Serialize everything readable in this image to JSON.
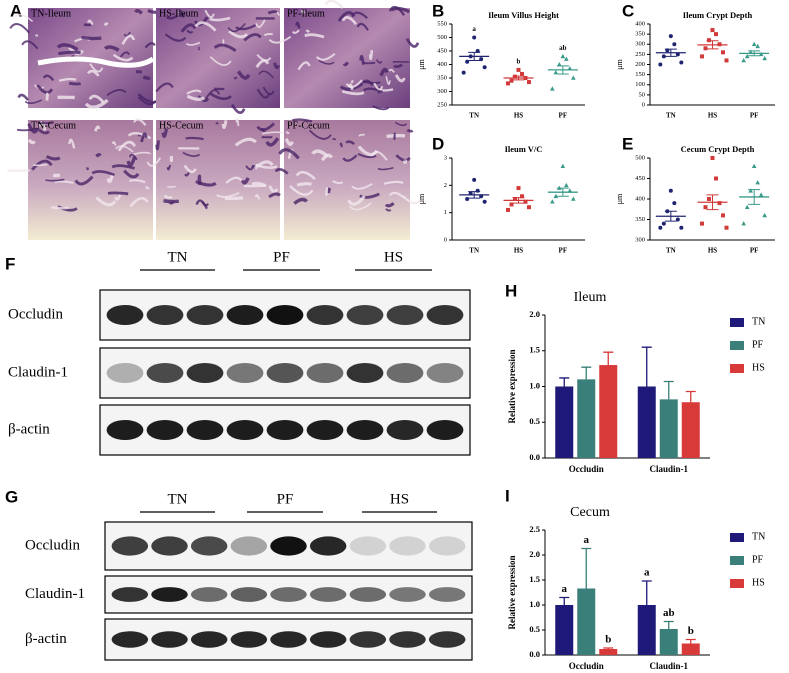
{
  "panels": [
    "A",
    "B",
    "C",
    "D",
    "E",
    "F",
    "G",
    "H",
    "I"
  ],
  "histology": [
    "TN-Ileum",
    "HS-Ileum",
    "PF-Ileum",
    "TN-Cecum",
    "HS-Cecum",
    "PF-Cecum"
  ],
  "blots": [
    {
      "groups": [
        "TN",
        "PF",
        "HS"
      ],
      "rows": [
        "Occludin",
        "Claudin-1",
        "β-actin"
      ]
    },
    {
      "groups": [
        "TN",
        "PF",
        "HS"
      ],
      "rows": [
        "Occludin",
        "Claudin-1",
        "β-actin"
      ]
    }
  ],
  "chart_data": [
    {
      "type": "dotplot",
      "title": "Ileum Villus Height",
      "ylabel": "μm",
      "ylim": [
        250,
        550
      ],
      "yticks": [
        250,
        300,
        350,
        400,
        450,
        500,
        550
      ],
      "series": [
        {
          "name": "TN",
          "color": "#1f2470",
          "values": [
            500,
            450,
            430,
            420,
            410,
            390,
            370
          ],
          "mean": 430,
          "sem": 15
        },
        {
          "name": "HS",
          "color": "#d23a3a",
          "values": [
            380,
            365,
            355,
            350,
            340,
            335,
            330
          ],
          "mean": 350,
          "sem": 7
        },
        {
          "name": "PF",
          "color": "#3a9a8a",
          "values": [
            430,
            420,
            400,
            385,
            370,
            350,
            310
          ],
          "mean": 380,
          "sem": 15
        }
      ],
      "annotations": [
        "a",
        "b",
        "ab"
      ]
    },
    {
      "type": "dotplot",
      "title": "Ileum Crypt Depth",
      "ylabel": "μm",
      "ylim": [
        0,
        400
      ],
      "yticks": [
        0,
        50,
        100,
        150,
        200,
        250,
        300,
        350,
        400
      ],
      "series": [
        {
          "name": "TN",
          "color": "#1f2470",
          "values": [
            340,
            300,
            270,
            250,
            240,
            210,
            200
          ],
          "mean": 258,
          "sem": 18
        },
        {
          "name": "HS",
          "color": "#d23a3a",
          "values": [
            370,
            350,
            320,
            300,
            280,
            260,
            240,
            220
          ],
          "mean": 297,
          "sem": 20
        },
        {
          "name": "PF",
          "color": "#3a9a8a",
          "values": [
            300,
            290,
            260,
            250,
            240,
            230,
            220
          ],
          "mean": 255,
          "sem": 12
        }
      ]
    },
    {
      "type": "dotplot",
      "title": "Ileum V/C",
      "ylabel": "μm",
      "ylim": [
        0,
        3
      ],
      "yticks": [
        0,
        1,
        2,
        3
      ],
      "series": [
        {
          "name": "TN",
          "color": "#1f2470",
          "values": [
            2.2,
            1.8,
            1.7,
            1.6,
            1.5,
            1.4
          ],
          "mean": 1.65,
          "sem": 0.12
        },
        {
          "name": "HS",
          "color": "#d23a3a",
          "values": [
            1.9,
            1.6,
            1.5,
            1.4,
            1.3,
            1.2,
            1.1
          ],
          "mean": 1.45,
          "sem": 0.1
        },
        {
          "name": "PF",
          "color": "#3a9a8a",
          "values": [
            2.7,
            2.0,
            1.9,
            1.8,
            1.6,
            1.5,
            1.4
          ],
          "mean": 1.75,
          "sem": 0.15
        }
      ]
    },
    {
      "type": "dotplot",
      "title": "Cecum Crypt Depth",
      "ylabel": "μm",
      "ylim": [
        300,
        500
      ],
      "yticks": [
        300,
        350,
        400,
        450,
        500
      ],
      "series": [
        {
          "name": "TN",
          "color": "#1f2470",
          "values": [
            420,
            390,
            370,
            350,
            340,
            330,
            330
          ],
          "mean": 358,
          "sem": 12
        },
        {
          "name": "HS",
          "color": "#d23a3a",
          "values": [
            500,
            450,
            400,
            390,
            380,
            360,
            340,
            330
          ],
          "mean": 392,
          "sem": 18
        },
        {
          "name": "PF",
          "color": "#3a9a8a",
          "values": [
            480,
            440,
            420,
            410,
            380,
            360,
            340
          ],
          "mean": 405,
          "sem": 18
        }
      ]
    },
    {
      "type": "bar",
      "title": "Ileum",
      "ylabel": "Relative expression",
      "categories": [
        "Occludin",
        "Claudin-1"
      ],
      "ylim": [
        0,
        2
      ],
      "yticks": [
        {
          "value": 0,
          "label": "0.0"
        },
        {
          "value": 0.5,
          "label": "0.5"
        },
        {
          "value": 1,
          "label": "1.0"
        },
        {
          "value": 1.5,
          "label": "1.5"
        },
        {
          "value": 2,
          "label": "2.0"
        }
      ],
      "series": [
        {
          "name": "TN",
          "color": "#1f1a7a",
          "values": [
            1.0,
            1.0
          ],
          "errors": [
            0.12,
            0.55
          ]
        },
        {
          "name": "PF",
          "color": "#3a7f7a",
          "values": [
            1.1,
            0.82
          ],
          "errors": [
            0.17,
            0.25
          ]
        },
        {
          "name": "HS",
          "color": "#d83a3a",
          "values": [
            1.3,
            0.78
          ],
          "errors": [
            0.18,
            0.15
          ]
        }
      ]
    },
    {
      "type": "bar",
      "title": "Cecum",
      "ylabel": "Relative expression",
      "categories": [
        "Occludin",
        "Claudin-1"
      ],
      "ylim": [
        0,
        2.5
      ],
      "yticks": [
        {
          "value": 0,
          "label": "0.0"
        },
        {
          "value": 0.5,
          "label": "0.5"
        },
        {
          "value": 1,
          "label": "1.0"
        },
        {
          "value": 1.5,
          "label": "1.5"
        },
        {
          "value": 2,
          "label": "2.0"
        },
        {
          "value": 2.5,
          "label": "2.5"
        }
      ],
      "series": [
        {
          "name": "TN",
          "color": "#1f1a7a",
          "values": [
            1.0,
            1.0
          ],
          "errors": [
            0.15,
            0.48
          ],
          "annotations": [
            "a",
            "a"
          ]
        },
        {
          "name": "PF",
          "color": "#3a7f7a",
          "values": [
            1.33,
            0.52
          ],
          "errors": [
            0.8,
            0.15
          ],
          "annotations": [
            "a",
            "ab"
          ]
        },
        {
          "name": "HS",
          "color": "#d83a3a",
          "values": [
            0.12,
            0.23
          ],
          "errors": [
            0.02,
            0.08
          ],
          "annotations": [
            "b",
            "b"
          ]
        }
      ]
    }
  ]
}
